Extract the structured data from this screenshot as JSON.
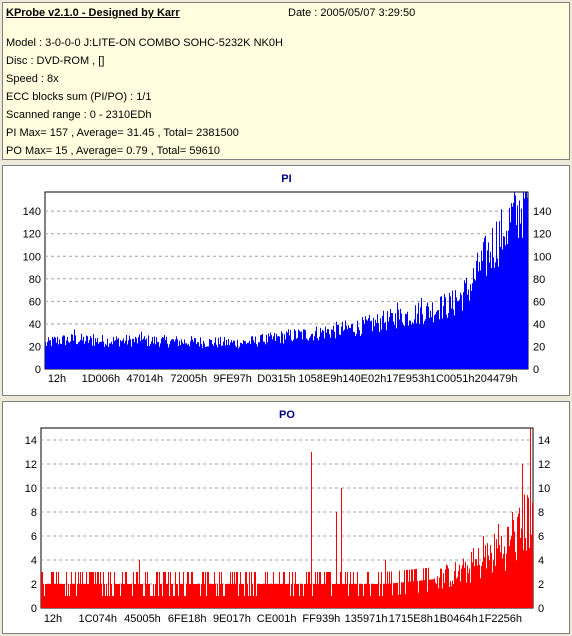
{
  "header": {
    "title": "KProbe v2.1.0 - Designed by Karr",
    "date": "Date : 2005/05/07 3:29:50",
    "lines": [
      "Model : 3-0-0-0 J:LITE-ON COMBO SOHC-5232K NK0H",
      "Disc : DVD-ROM ,  []",
      "Speed : 8x",
      "ECC blocks sum (PI/PO) : 1/1",
      "Scanned range : 0 - 2310EDh",
      "PI Max= 157 , Average= 31.45 , Total= 2381500",
      "PO Max= 15 , Average= 0.79 , Total= 59610"
    ]
  },
  "colors": {
    "pi_fill": "#0000ff",
    "po_fill": "#ff0000",
    "plot_bg": "#ffffff",
    "grid": "#a0a0a0",
    "title": "#000080"
  },
  "chart_data": [
    {
      "type": "bar",
      "title": "PI",
      "x_tick_labels": [
        "12h",
        "1D006h",
        "47014h",
        "72005h",
        "9FE97h",
        "D0315h",
        "1058E9h",
        "140E02h",
        "17E953h",
        "1C0051h",
        "204479h"
      ],
      "ylim": [
        0,
        157
      ],
      "y_ticks": [
        0,
        20,
        40,
        60,
        80,
        100,
        120,
        140
      ],
      "grid": true,
      "x_range": [
        0,
        1
      ],
      "profile": [
        [
          0,
          22
        ],
        [
          0.02,
          25
        ],
        [
          0.06,
          26
        ],
        [
          0.1,
          25
        ],
        [
          0.2,
          25
        ],
        [
          0.3,
          24
        ],
        [
          0.4,
          23
        ],
        [
          0.45,
          25
        ],
        [
          0.5,
          29
        ],
        [
          0.55,
          31
        ],
        [
          0.6,
          34
        ],
        [
          0.65,
          37
        ],
        [
          0.7,
          42
        ],
        [
          0.75,
          47
        ],
        [
          0.8,
          52
        ],
        [
          0.85,
          58
        ],
        [
          0.88,
          72
        ],
        [
          0.9,
          88
        ],
        [
          0.93,
          110
        ],
        [
          0.96,
          128
        ],
        [
          0.98,
          140
        ],
        [
          1.0,
          154
        ]
      ],
      "spikes": [
        [
          0.06,
          35
        ],
        [
          0.1,
          31
        ],
        [
          0.2,
          33
        ],
        [
          0.45,
          31
        ],
        [
          0.7,
          47
        ],
        [
          0.73,
          59
        ],
        [
          0.78,
          63
        ],
        [
          0.82,
          64
        ],
        [
          0.85,
          70
        ],
        [
          0.9,
          95
        ],
        [
          0.95,
          118
        ],
        [
          0.98,
          145
        ],
        [
          0.995,
          157
        ]
      ]
    },
    {
      "type": "bar",
      "title": "PO",
      "x_tick_labels": [
        "12h",
        "1C074h",
        "45005h",
        "6FE18h",
        "9E017h",
        "CE001h",
        "FF939h",
        "135971h",
        "1715E8h",
        "1B0464h",
        "1F2256h"
      ],
      "ylim": [
        0,
        15
      ],
      "y_ticks": [
        0,
        2,
        4,
        6,
        8,
        10,
        12,
        14
      ],
      "grid": true,
      "x_range": [
        0,
        1
      ],
      "profile": [
        [
          0,
          2
        ],
        [
          0.5,
          2
        ],
        [
          0.7,
          2
        ],
        [
          0.8,
          2.4
        ],
        [
          0.86,
          3
        ],
        [
          0.9,
          4
        ],
        [
          0.94,
          5
        ],
        [
          0.97,
          6
        ],
        [
          1.0,
          8
        ]
      ],
      "spikes": [
        [
          0.02,
          3
        ],
        [
          0.2,
          4
        ],
        [
          0.55,
          13
        ],
        [
          0.6,
          8
        ],
        [
          0.61,
          10
        ],
        [
          0.7,
          4
        ],
        [
          0.88,
          5
        ],
        [
          0.9,
          6
        ],
        [
          0.93,
          7
        ],
        [
          0.96,
          8
        ],
        [
          0.98,
          12
        ],
        [
          0.995,
          15
        ]
      ]
    }
  ]
}
